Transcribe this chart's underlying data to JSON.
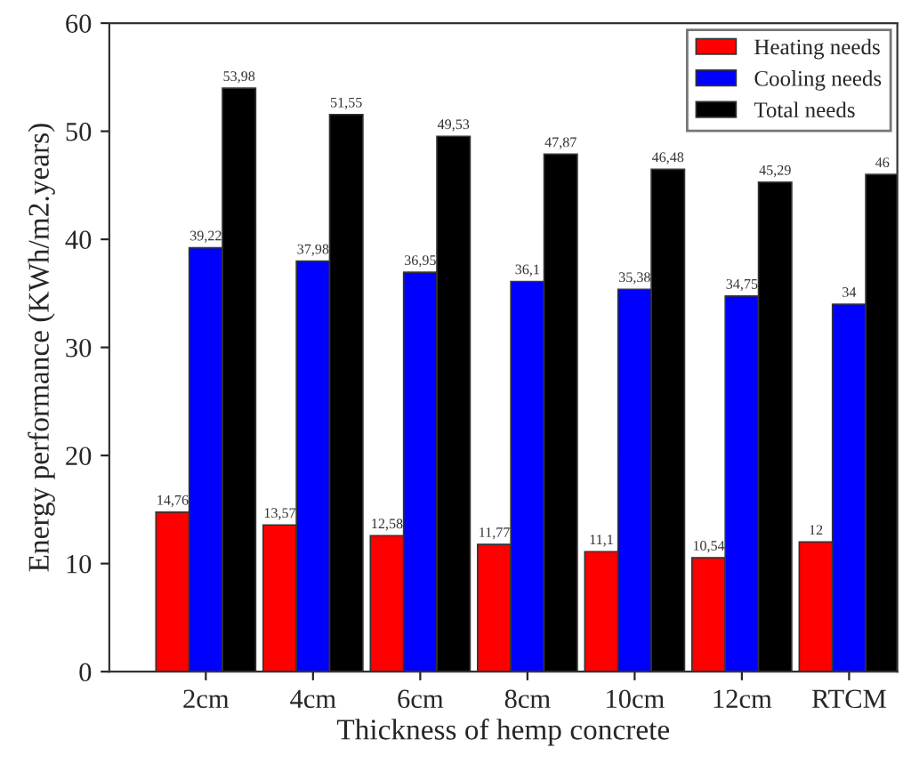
{
  "chart_data": {
    "type": "bar",
    "xlabel": "Thickness of hemp concrete",
    "ylabel": "Energy performance (KWh/m2.years)",
    "categories": [
      "2cm",
      "4cm",
      "6cm",
      "8cm",
      "10cm",
      "12cm",
      "RTCM"
    ],
    "series": [
      {
        "name": "Heating needs",
        "color": "#ff0000",
        "values": [
          14.76,
          13.57,
          12.58,
          11.77,
          11.1,
          10.54,
          12
        ],
        "value_labels": [
          "14,76",
          "13,57",
          "12,58",
          "11,77",
          "11,1",
          "10,54",
          "12"
        ]
      },
      {
        "name": "Cooling needs",
        "color": "#0000ff",
        "values": [
          39.22,
          37.98,
          36.95,
          36.1,
          35.38,
          34.75,
          34
        ],
        "value_labels": [
          "39,22",
          "37,98",
          "36,95",
          "36,1",
          "35,38",
          "34,75",
          "34"
        ]
      },
      {
        "name": "Total needs",
        "color": "#000000",
        "values": [
          53.98,
          51.55,
          49.53,
          47.87,
          46.48,
          45.29,
          46
        ],
        "value_labels": [
          "53,98",
          "51,55",
          "49,53",
          "47,87",
          "46,48",
          "45,29",
          "46"
        ]
      }
    ],
    "ylim": [
      0,
      60
    ],
    "yticks": [
      0,
      10,
      20,
      30,
      40,
      50,
      60
    ],
    "grid": false,
    "legend": "top right"
  }
}
